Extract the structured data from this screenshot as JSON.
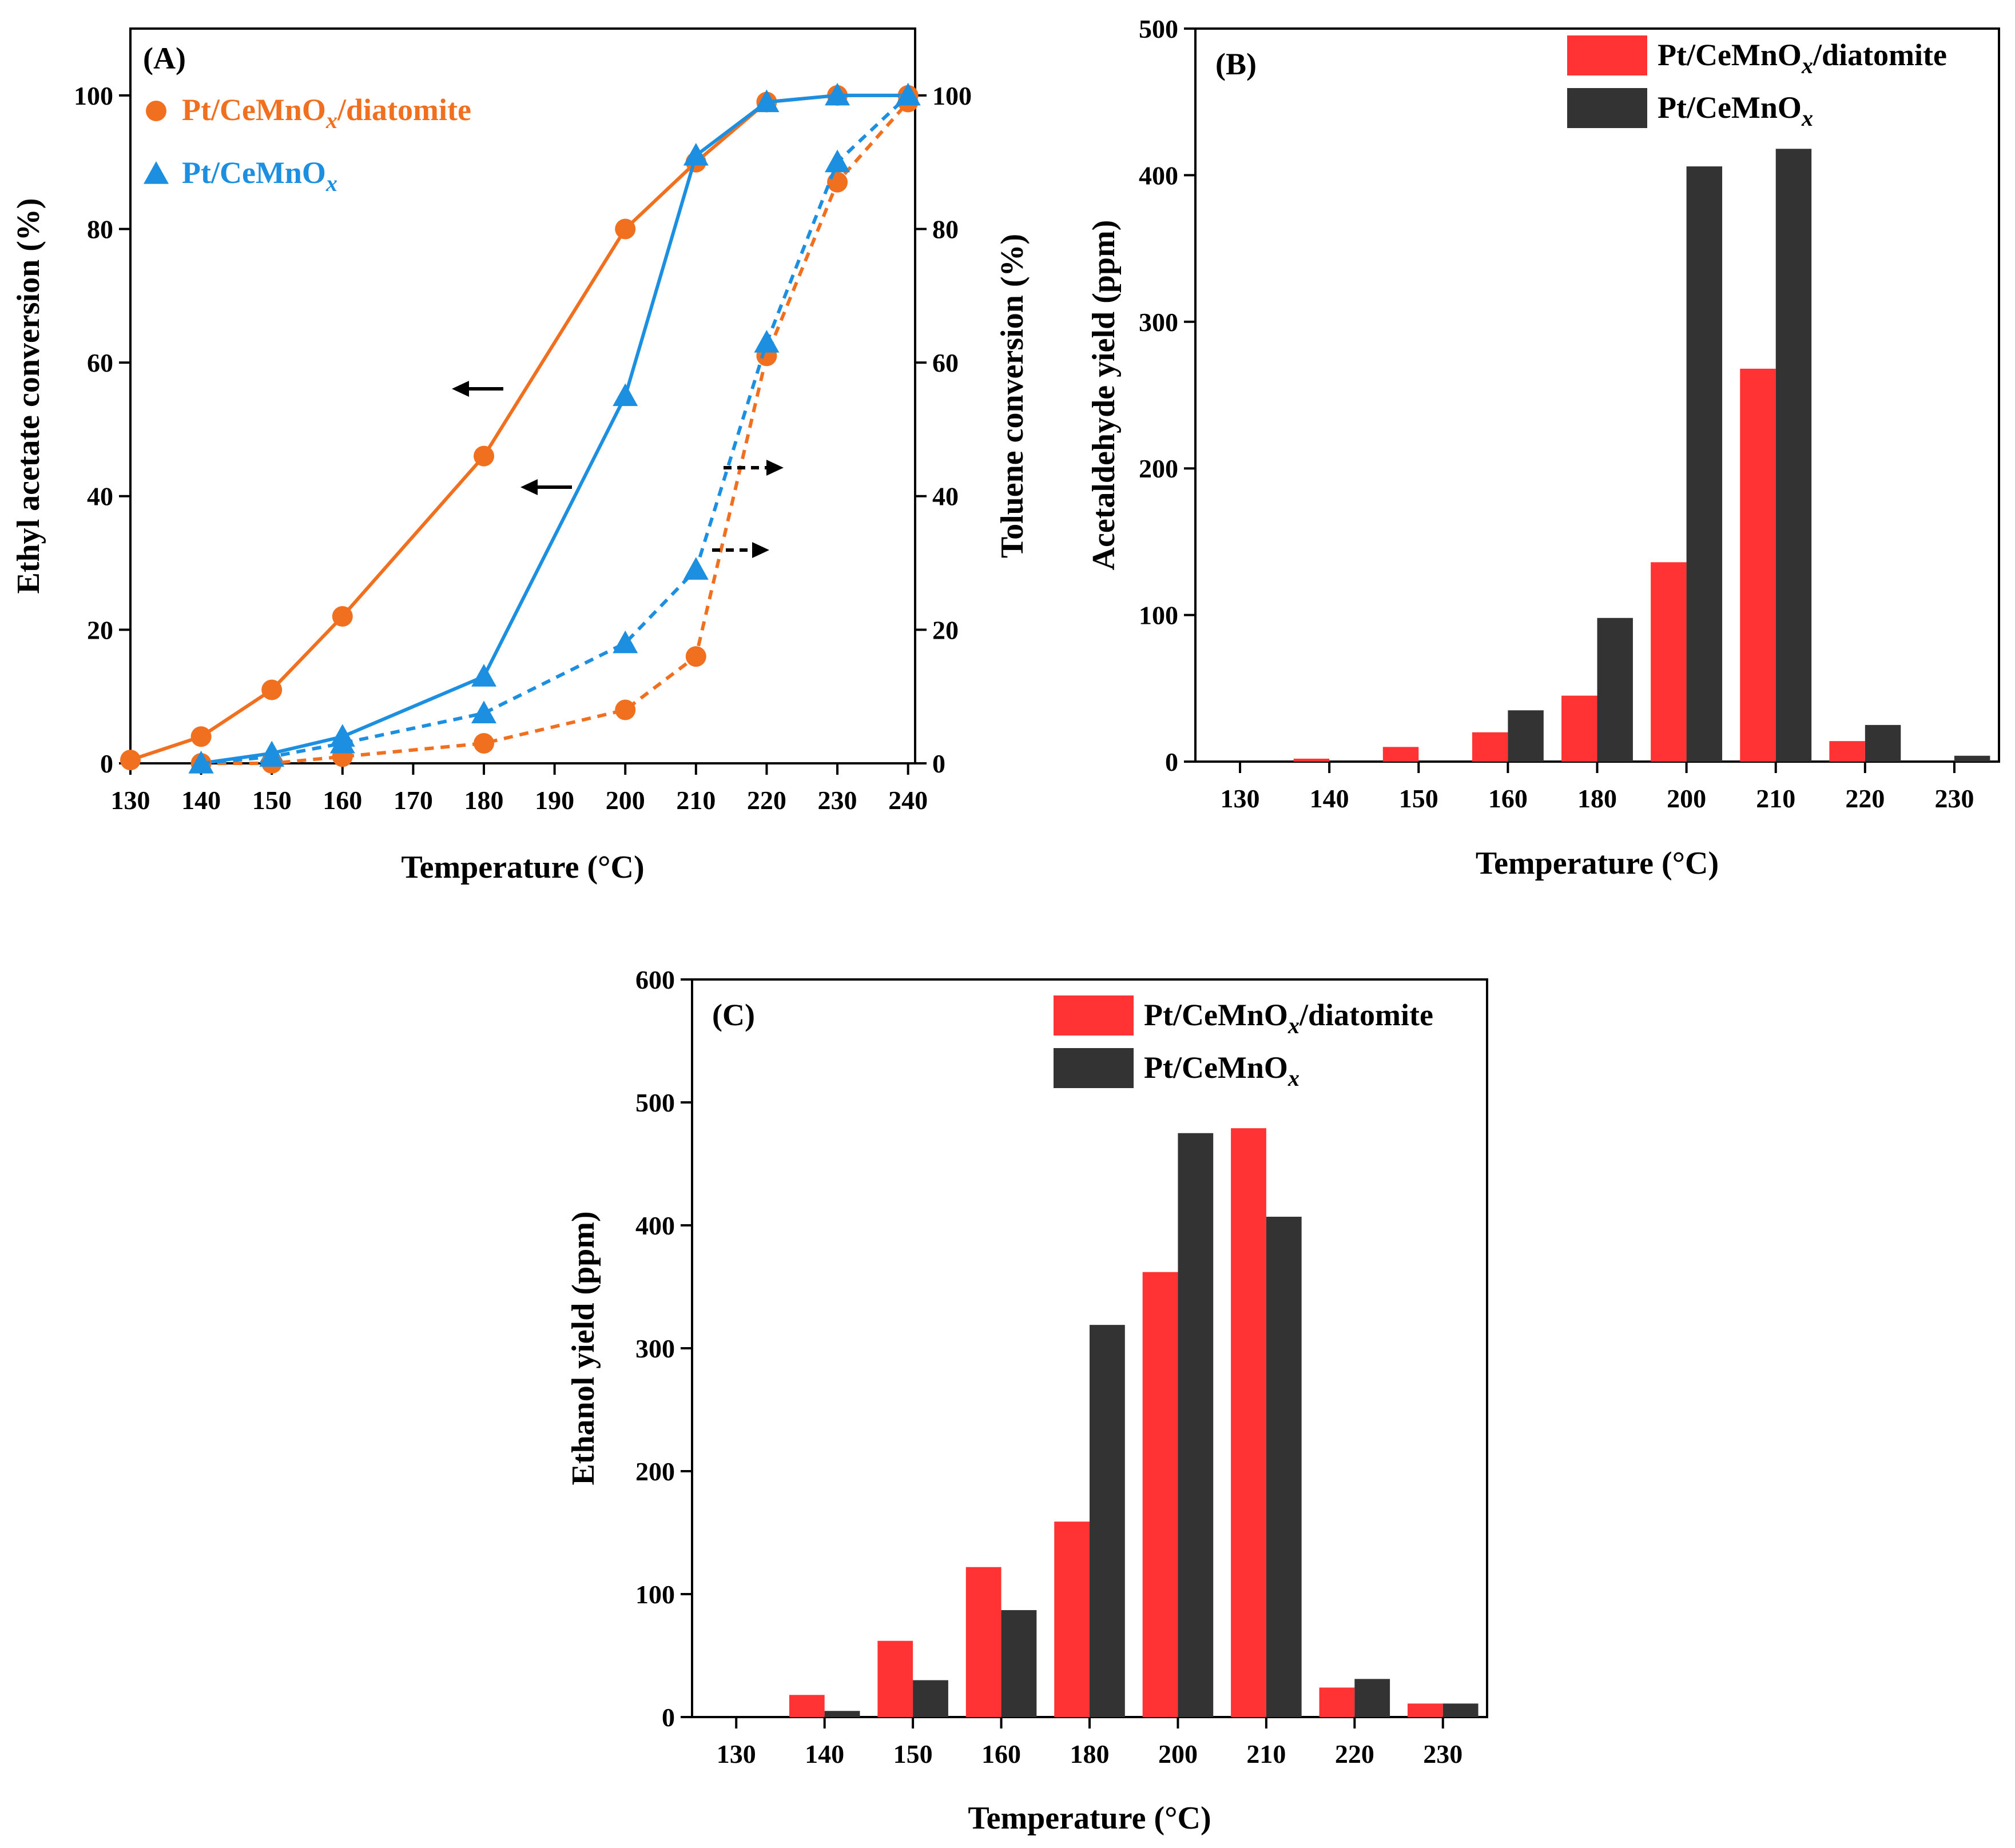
{
  "chart_data": [
    {
      "panel": "A",
      "type": "line",
      "panel_label": "(A)",
      "xlabel": "Temperature (°C)",
      "ylabel_left": "Ethyl acetate conversion (%)",
      "ylabel_right": "Toluene conversion (%)",
      "x_ticks": [
        130,
        140,
        150,
        160,
        170,
        180,
        190,
        200,
        210,
        220,
        230,
        240
      ],
      "y_ticks": [
        0,
        20,
        40,
        60,
        80,
        100
      ],
      "xlim": [
        130,
        241
      ],
      "ylim": [
        0,
        110
      ],
      "series": [
        {
          "name": "Pt/CeMnOx/diatomite",
          "axis": "left",
          "target": "Ethyl acetate",
          "color": "#f07020",
          "marker": "circle",
          "style": "solid",
          "x": [
            130,
            140,
            150,
            160,
            180,
            200,
            210,
            220,
            230,
            240
          ],
          "y": [
            0.5,
            4,
            11,
            22,
            46,
            80,
            90,
            99,
            100,
            100
          ]
        },
        {
          "name": "Pt/CeMnOx",
          "axis": "left",
          "target": "Ethyl acetate",
          "color": "#1c8fe0",
          "marker": "triangle",
          "style": "solid",
          "x": [
            140,
            150,
            160,
            180,
            200,
            210,
            220,
            230,
            240
          ],
          "y": [
            0,
            1.5,
            4,
            13,
            55,
            91,
            99,
            100,
            100
          ]
        },
        {
          "name": "Pt/CeMnOx/diatomite",
          "axis": "right",
          "target": "Toluene",
          "color": "#f07020",
          "marker": "circle",
          "style": "dashed",
          "x": [
            140,
            150,
            160,
            180,
            200,
            210,
            220,
            230,
            240
          ],
          "y": [
            0,
            0,
            1,
            3,
            8,
            16,
            61,
            87,
            99
          ]
        },
        {
          "name": "Pt/CeMnOx",
          "axis": "right",
          "target": "Toluene",
          "color": "#1c8fe0",
          "marker": "triangle",
          "style": "dashed",
          "x": [
            140,
            150,
            160,
            180,
            200,
            210,
            220,
            230,
            240
          ],
          "y": [
            0,
            1,
            3,
            7.5,
            18,
            29,
            63,
            90,
            100
          ]
        }
      ],
      "legend": [
        {
          "label_main": "Pt/CeMnO",
          "label_sub": "x",
          "label_tail": "/diatomite",
          "color": "#f07020",
          "marker": "circle"
        },
        {
          "label_main": "Pt/CeMnO",
          "label_sub": "x",
          "label_tail": "",
          "color": "#1c8fe0",
          "marker": "triangle"
        }
      ],
      "legend_position": "top-left"
    },
    {
      "panel": "B",
      "type": "bar",
      "panel_label": "(B)",
      "xlabel": "Temperature (°C)",
      "ylabel": "Acetaldehyde yield (ppm)",
      "categories": [
        "130",
        "140",
        "150",
        "160",
        "180",
        "200",
        "210",
        "220",
        "230"
      ],
      "y_ticks": [
        0,
        100,
        200,
        300,
        400,
        500
      ],
      "ylim": [
        0,
        500
      ],
      "series": [
        {
          "name": "Pt/CeMnOx/diatomite",
          "color": "#ff3333",
          "values": [
            0,
            2,
            10,
            20,
            45,
            136,
            268,
            14,
            0
          ]
        },
        {
          "name": "Pt/CeMnOx",
          "color": "#333333",
          "values": [
            0,
            0,
            0,
            35,
            98,
            406,
            418,
            25,
            4
          ]
        }
      ],
      "legend": [
        {
          "label_main": "Pt/CeMnO",
          "label_sub": "x",
          "label_tail": "/diatomite",
          "color": "#ff3333"
        },
        {
          "label_main": "Pt/CeMnO",
          "label_sub": "x",
          "label_tail": "",
          "color": "#333333"
        }
      ],
      "legend_position": "top-right"
    },
    {
      "panel": "C",
      "type": "bar",
      "panel_label": "(C)",
      "xlabel": "Temperature (°C)",
      "ylabel": "Ethanol yield (ppm)",
      "categories": [
        "130",
        "140",
        "150",
        "160",
        "180",
        "200",
        "210",
        "220",
        "230"
      ],
      "y_ticks": [
        0,
        100,
        200,
        300,
        400,
        500,
        600
      ],
      "ylim": [
        0,
        600
      ],
      "series": [
        {
          "name": "Pt/CeMnOx/diatomite",
          "color": "#ff3333",
          "values": [
            0,
            18,
            62,
            122,
            159,
            362,
            479,
            24,
            11
          ]
        },
        {
          "name": "Pt/CeMnOx",
          "color": "#333333",
          "values": [
            0,
            5,
            30,
            87,
            319,
            475,
            407,
            31,
            11
          ]
        }
      ],
      "legend": [
        {
          "label_main": "Pt/CeMnO",
          "label_sub": "x",
          "label_tail": "/diatomite",
          "color": "#ff3333"
        },
        {
          "label_main": "Pt/CeMnO",
          "label_sub": "x",
          "label_tail": "",
          "color": "#333333"
        }
      ],
      "legend_position": "top-right"
    }
  ]
}
